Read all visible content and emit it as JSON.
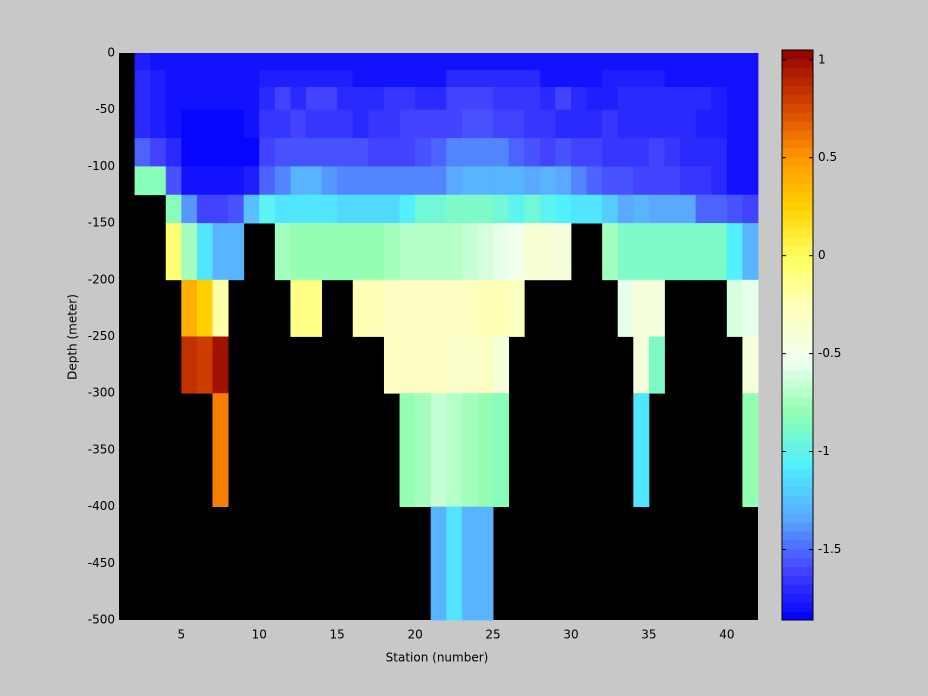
{
  "chart_data": {
    "type": "heatmap",
    "xlabel": "Station (number)",
    "ylabel": "Depth (meter)",
    "x": [
      2,
      3,
      4,
      5,
      6,
      7,
      8,
      9,
      10,
      11,
      12,
      13,
      14,
      15,
      16,
      17,
      18,
      19,
      20,
      21,
      22,
      23,
      24,
      25,
      26,
      27,
      28,
      29,
      30,
      31,
      32,
      33,
      34,
      35,
      36,
      37,
      38,
      39,
      40,
      41,
      42
    ],
    "y": [
      0,
      -15,
      -30,
      -50,
      -75,
      -100,
      -125,
      -150,
      -200,
      -250,
      -300,
      -400,
      -500
    ],
    "values": [
      [
        -1.75,
        -1.8,
        -1.8,
        -1.8,
        -1.8,
        -1.8,
        -1.8,
        -1.8,
        -1.8,
        -1.8,
        -1.8,
        -1.8,
        -1.8,
        -1.8,
        -1.8,
        -1.8,
        -1.8,
        -1.8,
        -1.8,
        -1.8,
        -1.8,
        -1.8,
        -1.8,
        -1.8,
        -1.8,
        -1.8,
        -1.8,
        -1.8,
        -1.8,
        -1.8,
        -1.8,
        -1.8,
        -1.8,
        -1.8,
        -1.8,
        -1.8,
        -1.8,
        -1.8,
        -1.8,
        -1.8
      ],
      [
        -1.7,
        -1.75,
        -1.8,
        -1.8,
        -1.8,
        -1.8,
        -1.8,
        -1.8,
        -1.75,
        -1.75,
        -1.75,
        -1.75,
        -1.75,
        -1.75,
        -1.8,
        -1.8,
        -1.8,
        -1.8,
        -1.8,
        -1.8,
        -1.7,
        -1.7,
        -1.7,
        -1.7,
        -1.7,
        -1.7,
        -1.8,
        -1.8,
        -1.8,
        -1.8,
        -1.75,
        -1.75,
        -1.75,
        -1.75,
        -1.8,
        -1.8,
        -1.8,
        -1.8,
        -1.8,
        -1.8
      ],
      [
        -1.7,
        -1.75,
        -1.8,
        -1.8,
        -1.8,
        -1.8,
        -1.8,
        -1.8,
        -1.7,
        -1.6,
        -1.7,
        -1.6,
        -1.6,
        -1.7,
        -1.7,
        -1.7,
        -1.65,
        -1.65,
        -1.7,
        -1.7,
        -1.6,
        -1.6,
        -1.6,
        -1.65,
        -1.65,
        -1.65,
        -1.7,
        -1.6,
        -1.7,
        -1.75,
        -1.75,
        -1.7,
        -1.7,
        -1.7,
        -1.7,
        -1.7,
        -1.7,
        -1.75,
        -1.8,
        -1.8
      ],
      [
        -1.7,
        -1.75,
        -1.8,
        -1.85,
        -1.85,
        -1.85,
        -1.85,
        -1.8,
        -1.65,
        -1.65,
        -1.6,
        -1.65,
        -1.65,
        -1.65,
        -1.7,
        -1.65,
        -1.65,
        -1.6,
        -1.6,
        -1.6,
        -1.6,
        -1.55,
        -1.55,
        -1.6,
        -1.6,
        -1.65,
        -1.65,
        -1.7,
        -1.7,
        -1.7,
        -1.65,
        -1.7,
        -1.7,
        -1.7,
        -1.7,
        -1.7,
        -1.75,
        -1.75,
        -1.8,
        -1.8
      ],
      [
        -1.5,
        -1.6,
        -1.7,
        -1.85,
        -1.85,
        -1.85,
        -1.85,
        -1.85,
        -1.6,
        -1.55,
        -1.55,
        -1.55,
        -1.55,
        -1.55,
        -1.55,
        -1.6,
        -1.6,
        -1.6,
        -1.55,
        -1.5,
        -1.45,
        -1.45,
        -1.45,
        -1.45,
        -1.5,
        -1.55,
        -1.6,
        -1.55,
        -1.6,
        -1.6,
        -1.65,
        -1.65,
        -1.65,
        -1.6,
        -1.65,
        -1.7,
        -1.7,
        -1.7,
        -1.8,
        -1.8
      ],
      [
        -0.85,
        -0.85,
        -1.55,
        -1.8,
        -1.8,
        -1.8,
        -1.8,
        -1.75,
        -1.5,
        -1.45,
        -1.3,
        -1.3,
        -1.4,
        -1.45,
        -1.45,
        -1.45,
        -1.45,
        -1.45,
        -1.45,
        -1.45,
        -1.35,
        -1.3,
        -1.3,
        -1.3,
        -1.3,
        -1.35,
        -1.3,
        -1.35,
        -1.45,
        -1.5,
        -1.55,
        -1.55,
        -1.6,
        -1.6,
        -1.6,
        -1.65,
        -1.65,
        -1.7,
        -1.8,
        -1.8
      ],
      [
        null,
        null,
        -0.85,
        -1.4,
        -1.6,
        -1.6,
        -1.55,
        -1.25,
        -1.0,
        -1.1,
        -1.1,
        -1.1,
        -1.1,
        -1.15,
        -1.15,
        -1.15,
        -1.15,
        -1.05,
        -0.95,
        -0.95,
        -0.9,
        -0.9,
        -0.9,
        -0.95,
        -1.0,
        -0.95,
        -1.0,
        -1.05,
        -1.1,
        -1.1,
        -1.2,
        -1.35,
        -1.3,
        -1.35,
        -1.35,
        -1.35,
        -1.5,
        -1.5,
        -1.55,
        -1.6
      ],
      [
        null,
        null,
        -0.05,
        -0.75,
        -1.1,
        -1.3,
        -1.3,
        null,
        null,
        -0.75,
        -0.8,
        -0.8,
        -0.8,
        -0.8,
        -0.8,
        -0.8,
        -0.75,
        -0.7,
        -0.7,
        -0.7,
        -0.7,
        -0.65,
        -0.6,
        -0.55,
        -0.5,
        -0.4,
        -0.4,
        -0.45,
        null,
        null,
        -0.75,
        -0.9,
        -0.9,
        -0.9,
        -0.9,
        -0.9,
        -0.9,
        -0.9,
        -1.05,
        -1.3
      ],
      [
        null,
        null,
        null,
        0.4,
        0.25,
        -0.2,
        null,
        null,
        null,
        null,
        -0.1,
        -0.1,
        null,
        null,
        -0.25,
        -0.25,
        -0.3,
        -0.3,
        -0.3,
        -0.3,
        -0.3,
        -0.3,
        -0.25,
        -0.25,
        -0.3,
        null,
        null,
        null,
        null,
        null,
        null,
        -0.55,
        -0.45,
        -0.45,
        null,
        null,
        null,
        null,
        -0.6,
        -0.55
      ],
      [
        null,
        null,
        null,
        0.85,
        0.8,
        1.0,
        null,
        null,
        null,
        null,
        null,
        null,
        null,
        null,
        null,
        null,
        -0.3,
        -0.3,
        -0.3,
        -0.3,
        -0.35,
        -0.35,
        -0.3,
        -0.45,
        null,
        null,
        null,
        null,
        null,
        null,
        null,
        null,
        -0.45,
        -0.9,
        null,
        null,
        null,
        null,
        null,
        -0.45
      ],
      [
        null,
        null,
        null,
        null,
        null,
        0.55,
        null,
        null,
        null,
        null,
        null,
        null,
        null,
        null,
        null,
        null,
        null,
        -0.8,
        -0.75,
        -0.65,
        -0.7,
        -0.75,
        -0.8,
        -0.85,
        null,
        null,
        null,
        null,
        null,
        null,
        null,
        null,
        -1.1,
        null,
        null,
        null,
        null,
        null,
        null,
        -0.8
      ],
      [
        null,
        null,
        null,
        null,
        null,
        null,
        null,
        null,
        null,
        null,
        null,
        null,
        null,
        null,
        null,
        null,
        null,
        null,
        null,
        -1.3,
        -1.1,
        -1.3,
        -1.3,
        null,
        null,
        null,
        null,
        null,
        null,
        null,
        null,
        null,
        null,
        null,
        null,
        null,
        null,
        null,
        null,
        null
      ]
    ],
    "xlim": [
      1,
      42
    ],
    "ylim": [
      -500,
      0
    ],
    "xticks": [
      5,
      10,
      15,
      20,
      25,
      30,
      35,
      40
    ],
    "yticks": [
      0,
      -50,
      -100,
      -150,
      -200,
      -250,
      -300,
      -350,
      -400,
      -450,
      -500
    ],
    "clim": [
      -1.86,
      1.05
    ],
    "colorbar_ticks": [
      -1.5,
      -1,
      -0.5,
      0,
      0.5,
      1
    ],
    "colormap": [
      "#0000ff",
      "#4646ff",
      "#5aaaff",
      "#50f0ff",
      "#90ffb0",
      "#f0fff0",
      "#ffffc0",
      "#ffff60",
      "#ffd000",
      "#ff9000",
      "#d04000",
      "#900000"
    ],
    "axis_background": "#000000"
  }
}
